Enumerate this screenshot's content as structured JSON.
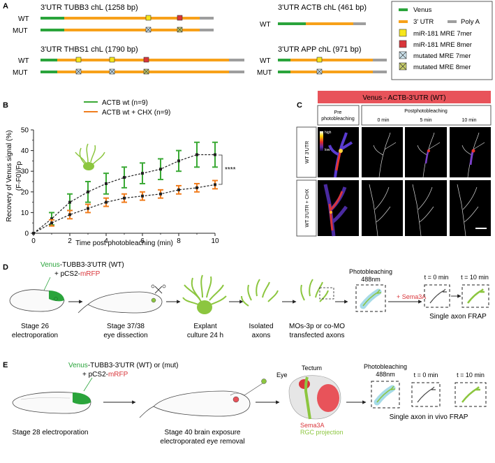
{
  "panels": {
    "A": "A",
    "B": "B",
    "C": "C",
    "D": "D",
    "E": "E"
  },
  "panelA": {
    "tubb3": {
      "title": "3'UTR TUBB3 chL (1258 bp)",
      "wt": "WT",
      "mut": "MUT"
    },
    "thbs1": {
      "title": "3'UTR THBS1 chL (1790 bp)",
      "wt": "WT",
      "mut": "MUT"
    },
    "actb": {
      "title": "3'UTR ACTB chL (461 bp)",
      "wt": "WT"
    },
    "app": {
      "title": "3'UTR APP chL (971 bp)",
      "wt": "WT",
      "mut": "MUT"
    },
    "legend": {
      "venus": "Venus",
      "utr": "3' UTR",
      "polya": "Poly A",
      "mre7": "miR-181 MRE 7mer",
      "mre8": "miR-181 MRE 8mer",
      "mut7": "mutated MRE 7mer",
      "mut8": "mutated MRE 8mer"
    },
    "colors": {
      "venus": "#2aa43b",
      "utr": "#f7a11a",
      "polya": "#9e9e9e",
      "mre7": "#f6e61c",
      "mre8": "#d9353a"
    }
  },
  "chart_data": {
    "type": "line",
    "xlabel": "Time post photobleaching (min)",
    "ylabel_line1": "Recovery of Venus signal (%)",
    "ylabel_line2": "(F-F0)/Fp",
    "xlim": [
      0,
      10
    ],
    "ylim": [
      0,
      50
    ],
    "xticks": [
      0,
      2,
      4,
      6,
      8,
      10
    ],
    "yticks": [
      0,
      10,
      20,
      30,
      40,
      50
    ],
    "significance": "****",
    "series": [
      {
        "name": "ACTB wt (n=9)",
        "color": "#3aa935",
        "x": [
          0,
          1,
          2,
          3,
          4,
          5,
          6,
          7,
          8,
          9,
          10
        ],
        "y": [
          0,
          7,
          15,
          20,
          24,
          27,
          29,
          31,
          35,
          38,
          38
        ],
        "err": [
          0,
          3,
          4,
          5,
          5,
          5,
          5,
          5,
          5,
          6,
          6
        ]
      },
      {
        "name": "ACTB wt + CHX (n=9)",
        "color": "#f07d1e",
        "x": [
          0,
          1,
          2,
          3,
          4,
          5,
          6,
          7,
          8,
          9,
          10
        ],
        "y": [
          0,
          5,
          9,
          12,
          15,
          17,
          18,
          19,
          21,
          22,
          23.5
        ],
        "err": [
          0,
          1.5,
          2,
          2,
          2,
          2,
          2,
          2,
          2,
          2,
          2
        ]
      }
    ]
  },
  "panelC": {
    "banner": "Venus - ACTB-3'UTR (WT)",
    "pre": "Pre photobleaching",
    "post": "Postphotobleaching",
    "t0": "0 min",
    "t5": "5 min",
    "t10": "10 min",
    "row1": "WT 3'UTR",
    "row2": "WT 3'UTR + CHX",
    "scale_high": "high",
    "scale_low": "low"
  },
  "panelD": {
    "construct_venus": "Venus",
    "construct_rest": "-TUBB3-3'UTR (WT)",
    "plasmid_prefix": "+ pCS2-",
    "plasmid_rfp": "mRFP",
    "stage26": "Stage 26",
    "electroporation": "electroporation",
    "stage3738": "Stage 37/38",
    "eye_dissection": "eye dissection",
    "explant": "Explant",
    "culture": "culture 24 h",
    "isolated": "Isolated",
    "axons": "axons",
    "mos": "MOs-3p or co-MO",
    "transfected": "transfected axons",
    "photobleaching": "Photobleaching",
    "nm": "488nm",
    "sema": "+ Sema3A",
    "t0": "t = 0 min",
    "t10": "t = 10 min",
    "frap": "Single axon FRAP"
  },
  "panelE": {
    "construct_venus": "Venus",
    "construct_rest": "-TUBB3-3'UTR (WT) or (mut)",
    "plasmid_prefix": "+ pCS2-",
    "plasmid_rfp": "mRFP",
    "stage28": "Stage 28 electroporation",
    "stage40a": "Stage 40 brain exposure",
    "stage40b": "electroporated eye removal",
    "eye": "Eye",
    "tectum": "Tectum",
    "sema": "Sema3A",
    "rgc": "RGC projection",
    "photobleaching": "Photobleaching",
    "nm": "488nm",
    "t0": "t = 0 min",
    "t10": "t = 10 min",
    "frap": "Single axon in vivo FRAP"
  }
}
